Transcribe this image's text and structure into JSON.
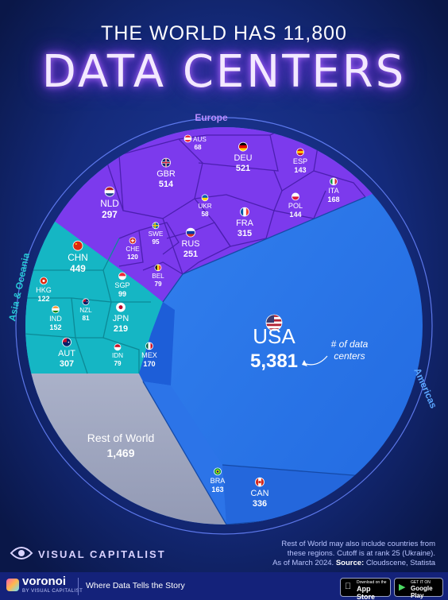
{
  "title": {
    "top": "THE WORLD HAS 11,800",
    "main": "DATA CENTERS"
  },
  "regions": {
    "europe": "Europe",
    "asia": "Asia & Oceania",
    "americas": "Americas"
  },
  "colors": {
    "europe": "#7c3aed",
    "asia": "#14b8c6",
    "americas": "#2f7ff0",
    "rest": "#9ea6bf",
    "background": "#0b1a4e"
  },
  "countries": [
    {
      "code": "AUS",
      "value": "68",
      "flag": "austria"
    },
    {
      "code": "DEU",
      "value": "521",
      "flag": "germany"
    },
    {
      "code": "ESP",
      "value": "143",
      "flag": "spain"
    },
    {
      "code": "GBR",
      "value": "514",
      "flag": "united-kingdom"
    },
    {
      "code": "ITA",
      "value": "168",
      "flag": "italy"
    },
    {
      "code": "NLD",
      "value": "297",
      "flag": "netherlands"
    },
    {
      "code": "UKR",
      "value": "58",
      "flag": "ukraine"
    },
    {
      "code": "POL",
      "value": "144",
      "flag": "poland"
    },
    {
      "code": "FRA",
      "value": "315",
      "flag": "france"
    },
    {
      "code": "SWE",
      "value": "95",
      "flag": "sweden"
    },
    {
      "code": "CHE",
      "value": "120",
      "flag": "switzerland"
    },
    {
      "code": "RUS",
      "value": "251",
      "flag": "russia"
    },
    {
      "code": "BEL",
      "value": "79",
      "flag": "belgium"
    },
    {
      "code": "CHN",
      "value": "449",
      "flag": "china"
    },
    {
      "code": "HKG",
      "value": "122",
      "flag": "hong-kong"
    },
    {
      "code": "SGP",
      "value": "99",
      "flag": "singapore"
    },
    {
      "code": "NZL",
      "value": "81",
      "flag": "new-zealand"
    },
    {
      "code": "IND",
      "value": "152",
      "flag": "india"
    },
    {
      "code": "JPN",
      "value": "219",
      "flag": "japan"
    },
    {
      "code": "AUT",
      "value": "307",
      "flag": "australia"
    },
    {
      "code": "IDN",
      "value": "79",
      "flag": "indonesia"
    },
    {
      "code": "MEX",
      "value": "170",
      "flag": "mexico"
    },
    {
      "code": "USA",
      "value": "5,381",
      "flag": "usa"
    },
    {
      "code": "BRA",
      "value": "163",
      "flag": "brazil"
    },
    {
      "code": "CAN",
      "value": "336",
      "flag": "canada"
    }
  ],
  "rest_of_world": {
    "label": "Rest of World",
    "value": "1,469"
  },
  "annotation": {
    "line1": "# of data",
    "line2": "centers"
  },
  "brand": "VISUAL CAPITALIST",
  "footnote": {
    "line1": "Rest of World may also include countries from",
    "line2": "these regions. Cutoff is at rank 25 (Ukraine).",
    "line3": "As of March 2024.",
    "source_label": "Source:",
    "source": "Cloudscene, Statista"
  },
  "footer": {
    "voronoi": "voronoi",
    "voronoi_sub": "BY VISUAL CAPITALIST",
    "tagline": "Where Data Tells the Story",
    "appstore_top": "Download on the",
    "appstore": "App Store",
    "googleplay_top": "GET IT ON",
    "googleplay": "Google Play"
  }
}
